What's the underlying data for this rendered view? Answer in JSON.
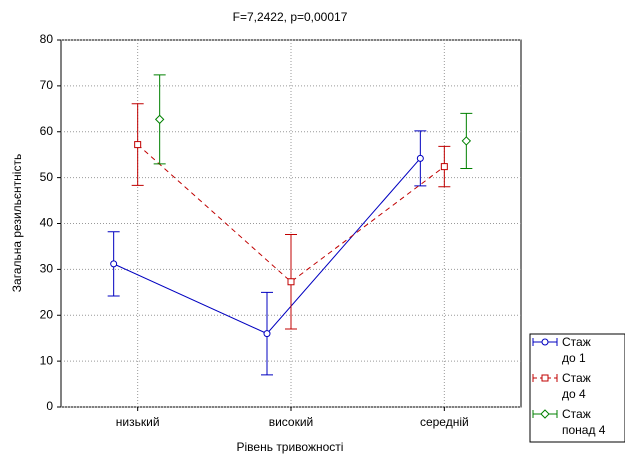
{
  "chart_data": {
    "type": "errorbar-line",
    "title": "F=7,2422, p=0,00017",
    "x_label": "Рівень тривожності",
    "y_label": "Загальна резильєнтність",
    "categories": [
      "низький",
      "високий",
      "середній"
    ],
    "series": [
      {
        "name": "Стаж\nдо 1",
        "color": "#0000c0",
        "marker": "circle",
        "linestyle": "solid",
        "values": [
          31.2,
          16,
          54.2
        ],
        "errors": [
          7,
          9,
          6
        ]
      },
      {
        "name": "Стаж\nдо 4",
        "color": "#c00000",
        "marker": "square",
        "linestyle": "dashed",
        "values": [
          57.2,
          27.3,
          52.4
        ],
        "errors": [
          8.9,
          10.3,
          4.4
        ]
      },
      {
        "name": "Стаж\nпонад 4",
        "color": "#008000",
        "marker": "diamond",
        "linestyle": "none",
        "values": [
          62.7,
          null,
          58
        ],
        "errors": [
          9.7,
          null,
          6
        ]
      }
    ],
    "ylim": [
      0,
      80
    ],
    "yticks": [
      0,
      10,
      20,
      30,
      40,
      50,
      60,
      70,
      80
    ],
    "grid": true
  }
}
